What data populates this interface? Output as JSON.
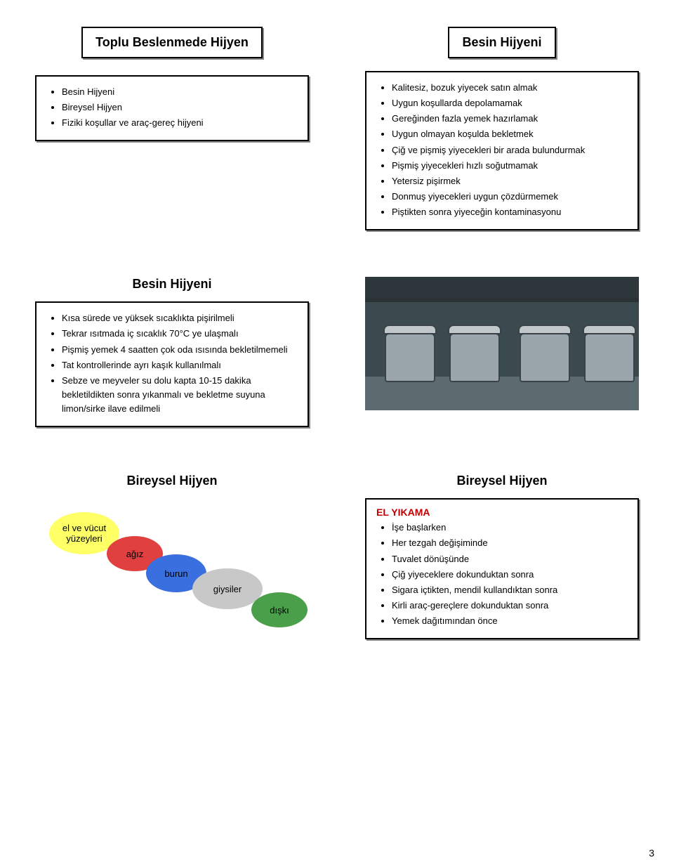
{
  "page_number": "3",
  "slides": {
    "s1": {
      "title": "Toplu Beslenmede Hijyen",
      "items": [
        "Besin Hijyeni",
        "Bireysel Hijyen",
        "Fiziki koşullar ve araç-gereç hijyeni"
      ]
    },
    "s2": {
      "title": "Besin Hijyeni",
      "items": [
        "Kalitesiz, bozuk yiyecek satın almak",
        "Uygun koşullarda depolamamak",
        "Gereğinden fazla yemek hazırlamak",
        "Uygun olmayan koşulda bekletmek",
        "Çiğ ve pişmiş yiyecekleri bir arada bulundurmak",
        "Pişmiş yiyecekleri hızlı soğutmamak",
        "Yetersiz pişirmek",
        "Donmuş yiyecekleri uygun çözdürmemek",
        "Piştikten sonra yiyeceğin kontaminasyonu"
      ]
    },
    "s3": {
      "title": "Besin Hijyeni",
      "items": [
        "Kısa sürede ve yüksek sıcaklıkta pişirilmeli",
        "Tekrar ısıtmada iç sıcaklık 70°C ye ulaşmalı",
        "Pişmiş yemek 4 saatten çok oda ısısında bekletilmemeli",
        "Tat kontrollerinde ayrı kaşık kullanılmalı",
        "Sebze ve meyveler su dolu kapta 10-15 dakika bekletildikten sonra yıkanmalı ve bekletme suyuna limon/sirke ilave edilmeli"
      ]
    },
    "s5": {
      "title": "Bireysel Hijyen",
      "ovals": {
        "yellow": "el ve vücut yüzeyleri",
        "red": "ağız",
        "blue": "burun",
        "gray": "giysiler",
        "green": "dışkı"
      },
      "oval_colors": {
        "yellow": "#ffff66",
        "red": "#e04040",
        "blue": "#3a6fe0",
        "gray": "#c8c8c8",
        "green": "#4aa04a"
      }
    },
    "s6": {
      "title": "Bireysel Hijyen",
      "heading": "EL YIKAMA",
      "items": [
        "İşe başlarken",
        "Her tezgah değişiminde",
        "Tuvalet dönüşünde",
        "Çiğ yiyeceklere dokunduktan sonra",
        "Sigara içtikten, mendil kullandıktan sonra",
        "Kirli araç-gereçlere dokunduktan sonra",
        "Yemek dağıtımından önce"
      ]
    }
  }
}
